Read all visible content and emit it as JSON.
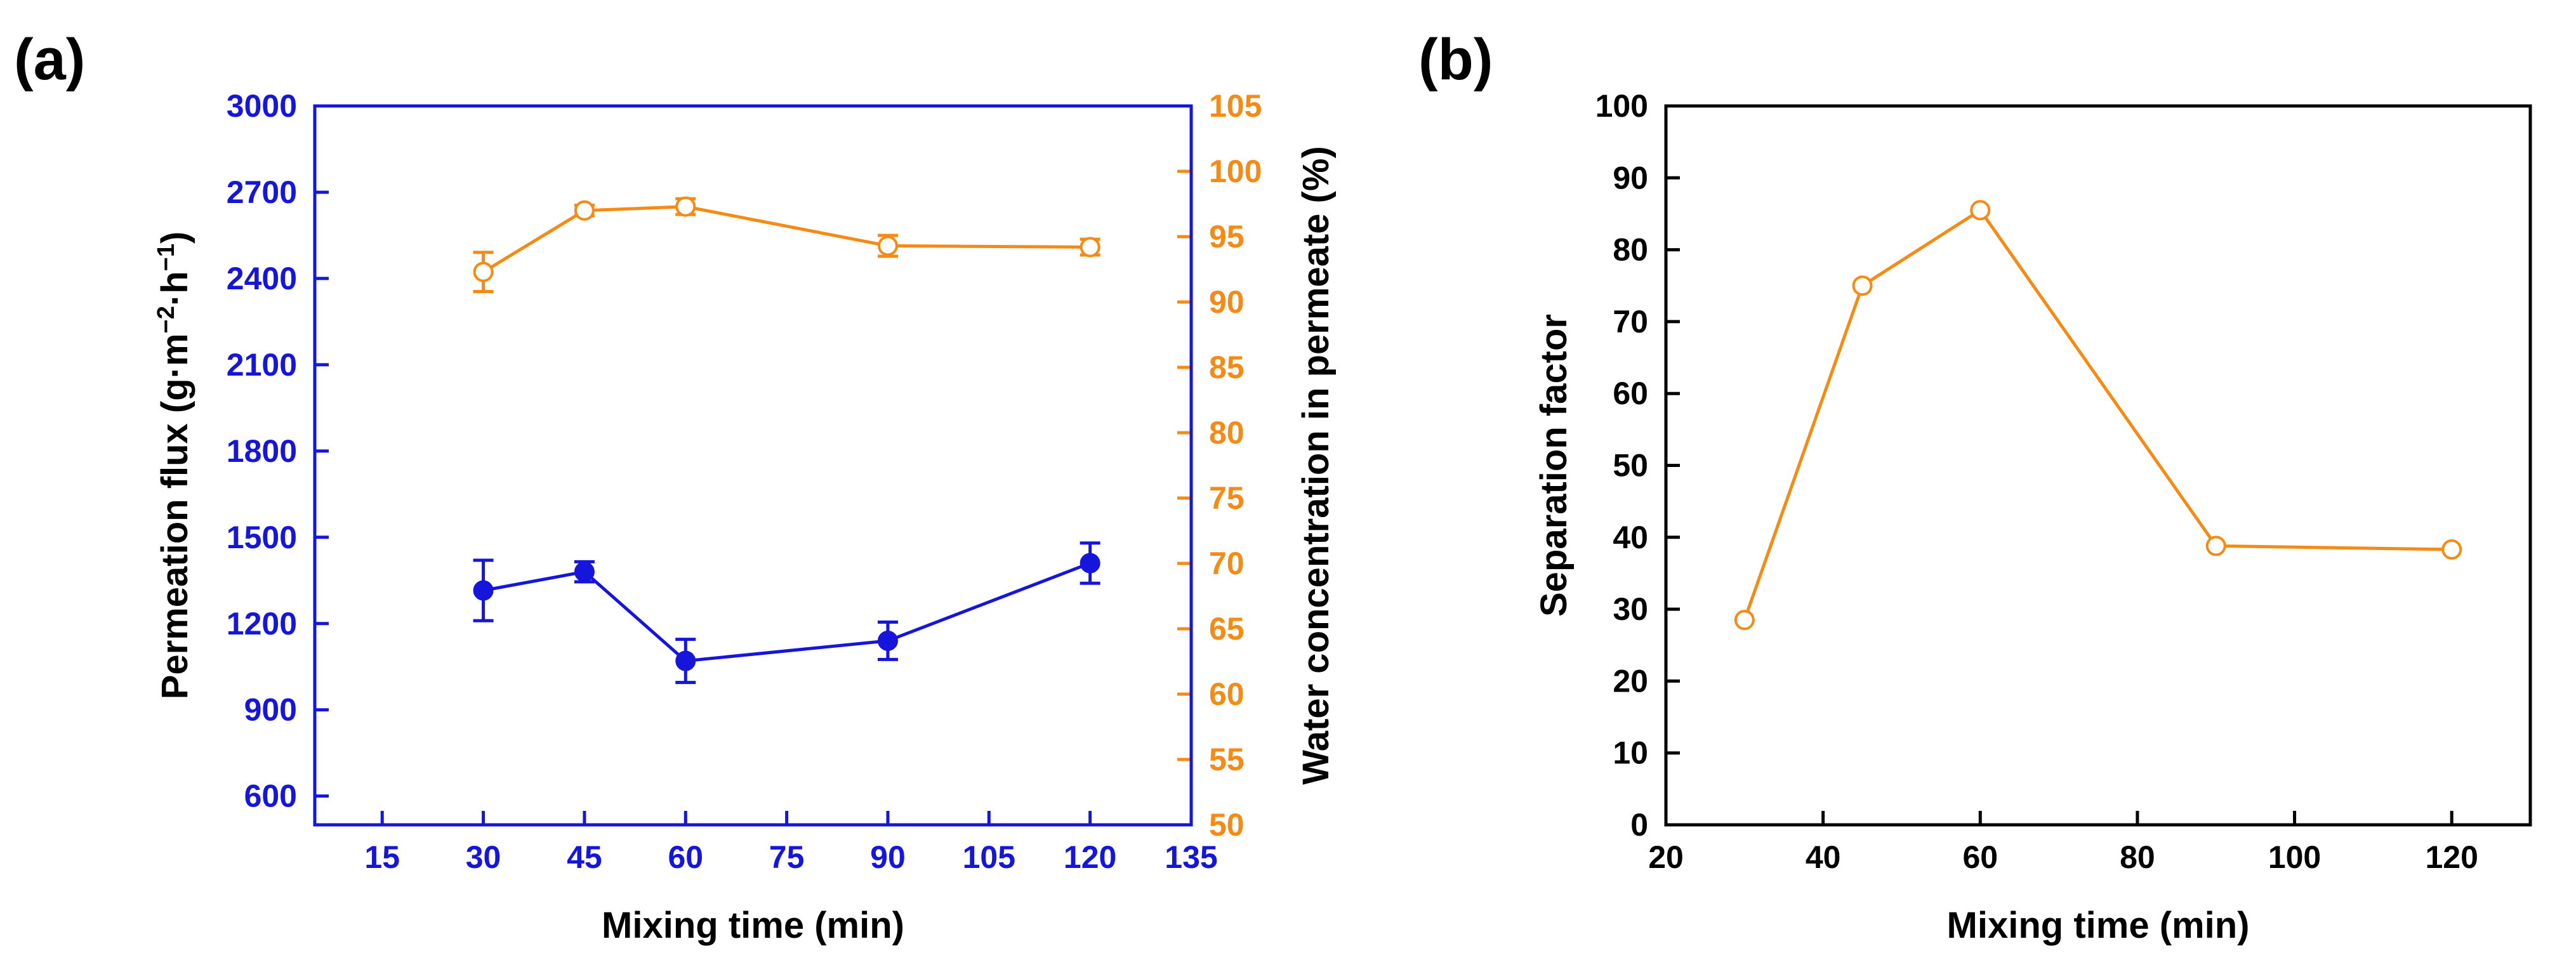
{
  "colors": {
    "blue": "#1515DB",
    "orange": "#F58A14",
    "black": "#000000"
  },
  "chart_data": [
    {
      "panel_label": "(a)",
      "type": "line",
      "xlabel": "Mixing time (min)",
      "xlim": [
        5,
        135
      ],
      "xticks": [
        15,
        30,
        45,
        60,
        75,
        90,
        105,
        120,
        135
      ],
      "ylabel_left": {
        "prefix": "Permeation flux (g·m",
        "sup1": "−2",
        "mid": "·h",
        "sup2": "−1",
        "suffix": ")"
      },
      "ylim_left": [
        500,
        3000
      ],
      "yticks_left": [
        600,
        900,
        1200,
        1500,
        1800,
        2100,
        2400,
        2700,
        3000
      ],
      "ylabel_right": "Water concentration in permeate (%)",
      "ylim_right": [
        50,
        105
      ],
      "yticks_right": [
        50,
        55,
        60,
        65,
        70,
        75,
        80,
        85,
        90,
        95,
        100,
        105
      ],
      "series": [
        {
          "name": "Permeation flux",
          "axis": "left",
          "color": "blue",
          "marker": "filled-circle",
          "x": [
            30,
            45,
            60,
            90,
            120
          ],
          "y": [
            1315,
            1380,
            1070,
            1140,
            1410
          ],
          "err": [
            105,
            35,
            75,
            65,
            70
          ]
        },
        {
          "name": "Water concentration in permeate",
          "axis": "right",
          "color": "orange",
          "marker": "open-circle",
          "x": [
            30,
            45,
            60,
            90,
            120
          ],
          "y": [
            92.3,
            97.0,
            97.3,
            94.3,
            94.2
          ],
          "err": [
            1.5,
            0.4,
            0.6,
            0.8,
            0.6
          ]
        }
      ]
    },
    {
      "panel_label": "(b)",
      "type": "line",
      "xlabel": "Mixing time (min)",
      "ylabel": "Separation factor",
      "xlim": [
        20,
        130
      ],
      "xticks": [
        20,
        40,
        60,
        80,
        100,
        120
      ],
      "ylim": [
        0,
        100
      ],
      "yticks": [
        0,
        10,
        20,
        30,
        40,
        50,
        60,
        70,
        80,
        90,
        100
      ],
      "series": [
        {
          "name": "Separation factor",
          "color": "orange",
          "marker": "open-circle",
          "x": [
            30,
            45,
            60,
            90,
            120
          ],
          "y": [
            28.5,
            75,
            85.5,
            38.8,
            38.3
          ]
        }
      ]
    }
  ]
}
